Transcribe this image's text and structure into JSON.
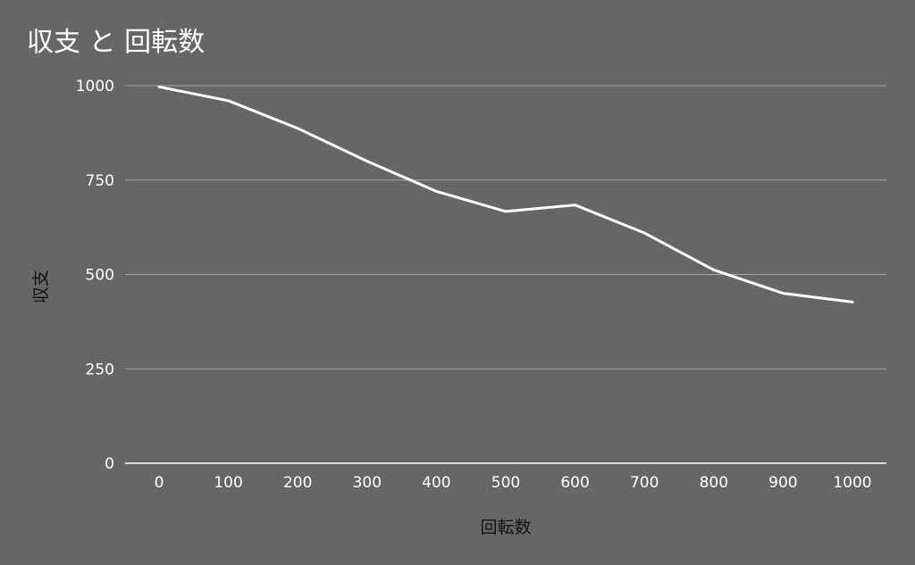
{
  "chart_data": {
    "type": "line",
    "title": "収支 と 回転数",
    "xlabel": "回転数",
    "ylabel": "収支",
    "x": [
      0,
      100,
      200,
      300,
      400,
      500,
      600,
      700,
      800,
      900,
      1000
    ],
    "series": [
      {
        "values": [
          997,
          960,
          887,
          800,
          720,
          667,
          684,
          610,
          512,
          450,
          427
        ]
      }
    ],
    "xticks": [
      "0",
      "100",
      "200",
      "300",
      "400",
      "500",
      "600",
      "700",
      "800",
      "900",
      "1000"
    ],
    "yticks": [
      "0",
      "250",
      "500",
      "750",
      "1000"
    ],
    "ytick_values": [
      0,
      250,
      500,
      750,
      1000
    ],
    "ylim": [
      0,
      1000
    ],
    "xlim": [
      0,
      1000
    ],
    "grid": true,
    "legend": "none",
    "colors": {
      "background": "#666666",
      "line": "#ffffff",
      "grid": "#a8a8a8",
      "title": "#ffffff",
      "axis_label": "#111111"
    }
  }
}
